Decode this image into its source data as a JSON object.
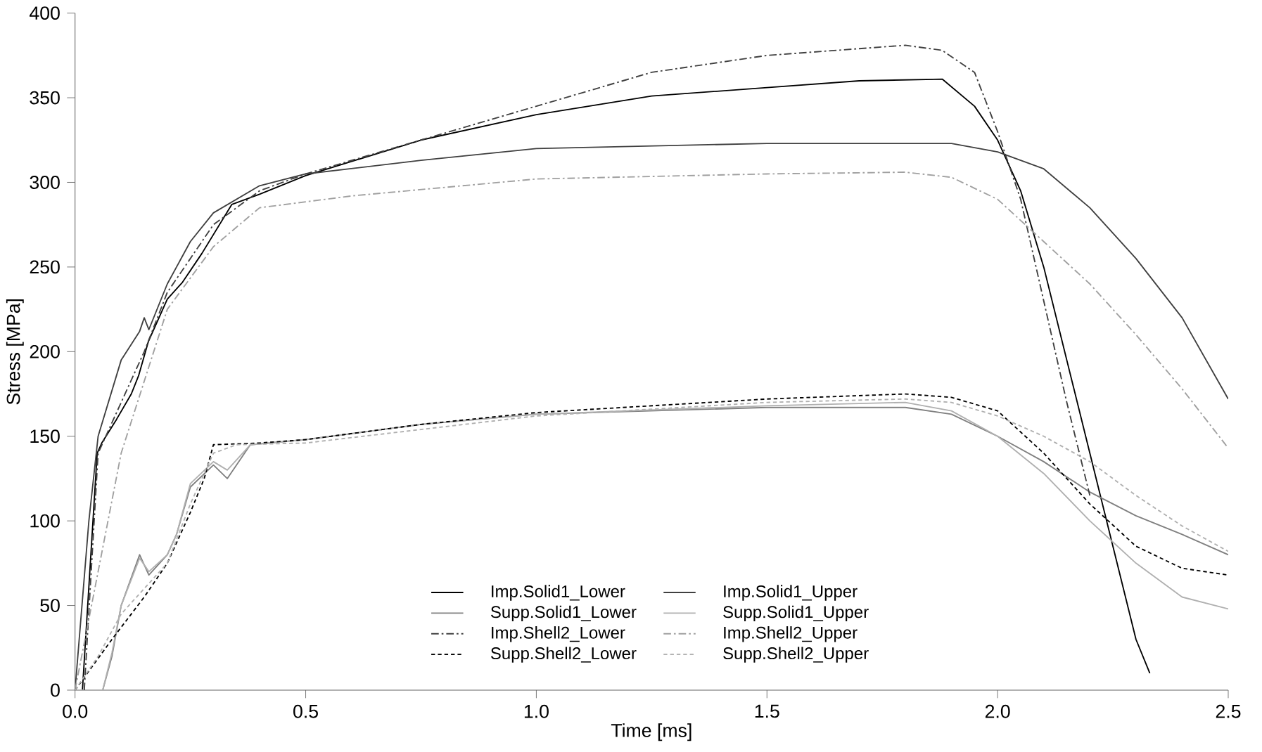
{
  "chart_data": {
    "type": "line",
    "xlabel": "Time [ms]",
    "ylabel": "Stress [MPa]",
    "xlim": [
      0,
      2.5
    ],
    "ylim": [
      0,
      400
    ],
    "xticks": [
      {
        "value": 0,
        "label": "0.0"
      },
      {
        "value": 0.5,
        "label": "0.5"
      },
      {
        "value": 1,
        "label": "1.0"
      },
      {
        "value": 1.5,
        "label": "1.5"
      },
      {
        "value": 2,
        "label": "2.0"
      },
      {
        "value": 2.5,
        "label": "2.5"
      }
    ],
    "yticks": [
      0,
      50,
      100,
      150,
      200,
      250,
      300,
      350,
      400
    ],
    "grid": false,
    "legend": "bottom",
    "marker": "none",
    "series": [
      {
        "name": "Imp.Solid1_Lower",
        "color": "#000000",
        "line_style": "solid",
        "x": [
          0.016,
          0.048,
          0.058,
          0.09,
          0.122,
          0.138,
          0.159,
          0.2,
          0.233,
          0.275,
          0.34,
          0.4,
          0.5,
          0.75,
          1.0,
          1.25,
          1.5,
          1.7,
          1.88,
          1.95,
          2.0,
          2.05,
          2.1,
          2.15,
          2.2,
          2.25,
          2.3,
          2.33
        ],
        "values": [
          0,
          140,
          146,
          160,
          175,
          186,
          206,
          231,
          241,
          258,
          287,
          293,
          304,
          325,
          340,
          351,
          356,
          360,
          361,
          345,
          325,
          295,
          250,
          195,
          140,
          85,
          30,
          10
        ]
      },
      {
        "name": "Imp.Solid1_Upper",
        "color": "#404040",
        "line_style": "solid",
        "x": [
          0,
          0.03,
          0.05,
          0.1,
          0.14,
          0.15,
          0.16,
          0.2,
          0.25,
          0.3,
          0.4,
          0.5,
          0.75,
          1.0,
          1.5,
          1.9,
          2.0,
          2.1,
          2.2,
          2.3,
          2.4,
          2.5
        ],
        "values": [
          0,
          100,
          150,
          195,
          212,
          220,
          213,
          240,
          265,
          282,
          298,
          305,
          313,
          320,
          323,
          323,
          318,
          308,
          285,
          255,
          220,
          172
        ]
      },
      {
        "name": "Supp.Solid1_Lower",
        "color": "#808080",
        "line_style": "solid",
        "x": [
          0,
          0.06,
          0.08,
          0.1,
          0.14,
          0.16,
          0.2,
          0.22,
          0.25,
          0.3,
          0.33,
          0.38,
          0.5,
          0.75,
          1.0,
          1.5,
          1.8,
          1.9,
          2.0,
          2.1,
          2.2,
          2.3,
          2.4,
          2.5
        ],
        "values": [
          0,
          0,
          20,
          50,
          80,
          68,
          80,
          92,
          120,
          133,
          125,
          145,
          148,
          157,
          163,
          167,
          167,
          163,
          150,
          135,
          117,
          103,
          92,
          80
        ]
      },
      {
        "name": "Supp.Solid1_Upper",
        "color": "#b0b0b0",
        "line_style": "solid",
        "x": [
          0,
          0.06,
          0.08,
          0.1,
          0.14,
          0.16,
          0.2,
          0.22,
          0.25,
          0.3,
          0.33,
          0.38,
          0.5,
          0.75,
          1.0,
          1.5,
          1.8,
          1.9,
          2.0,
          2.1,
          2.2,
          2.3,
          2.4,
          2.5
        ],
        "values": [
          0,
          0,
          22,
          50,
          78,
          70,
          80,
          92,
          122,
          135,
          130,
          145,
          148,
          157,
          163,
          168,
          170,
          165,
          150,
          128,
          100,
          75,
          55,
          48
        ]
      },
      {
        "name": "Imp.Shell2_Lower",
        "color": "#404040",
        "line_style": "dashdot",
        "x": [
          0.02,
          0.05,
          0.1,
          0.15,
          0.2,
          0.3,
          0.4,
          0.5,
          0.75,
          1.0,
          1.25,
          1.5,
          1.8,
          1.88,
          1.95,
          2.0,
          2.05,
          2.1,
          2.15,
          2.2
        ],
        "values": [
          0,
          140,
          170,
          200,
          235,
          275,
          295,
          305,
          325,
          345,
          365,
          375,
          381,
          378,
          365,
          330,
          290,
          230,
          170,
          115
        ]
      },
      {
        "name": "Imp.Shell2_Upper",
        "color": "#a0a0a0",
        "line_style": "dashdot",
        "x": [
          0,
          0.05,
          0.1,
          0.2,
          0.3,
          0.4,
          0.6,
          1.0,
          1.5,
          1.8,
          1.9,
          2.0,
          2.1,
          2.2,
          2.3,
          2.4,
          2.5
        ],
        "values": [
          0,
          70,
          140,
          225,
          262,
          285,
          292,
          302,
          305,
          306,
          303,
          290,
          265,
          240,
          210,
          178,
          143
        ]
      },
      {
        "name": "Supp.Shell2_Lower",
        "color": "#000000",
        "line_style": "dashed",
        "x": [
          0,
          0.08,
          0.15,
          0.2,
          0.25,
          0.28,
          0.3,
          0.4,
          0.5,
          0.75,
          1.0,
          1.5,
          1.8,
          1.9,
          2.0,
          2.1,
          2.2,
          2.3,
          2.4,
          2.5
        ],
        "values": [
          0,
          30,
          55,
          75,
          105,
          125,
          145,
          146,
          148,
          157,
          164,
          172,
          175,
          173,
          165,
          140,
          110,
          85,
          72,
          68
        ]
      },
      {
        "name": "Supp.Shell2_Upper",
        "color": "#b0b0b0",
        "line_style": "dashed",
        "x": [
          0,
          0.05,
          0.1,
          0.2,
          0.25,
          0.3,
          0.35,
          0.5,
          1.0,
          1.5,
          1.8,
          1.9,
          2.0,
          2.1,
          2.2,
          2.3,
          2.4,
          2.5
        ],
        "values": [
          0,
          20,
          45,
          75,
          110,
          140,
          145,
          146,
          162,
          170,
          172,
          170,
          162,
          150,
          135,
          115,
          97,
          82
        ]
      }
    ]
  }
}
